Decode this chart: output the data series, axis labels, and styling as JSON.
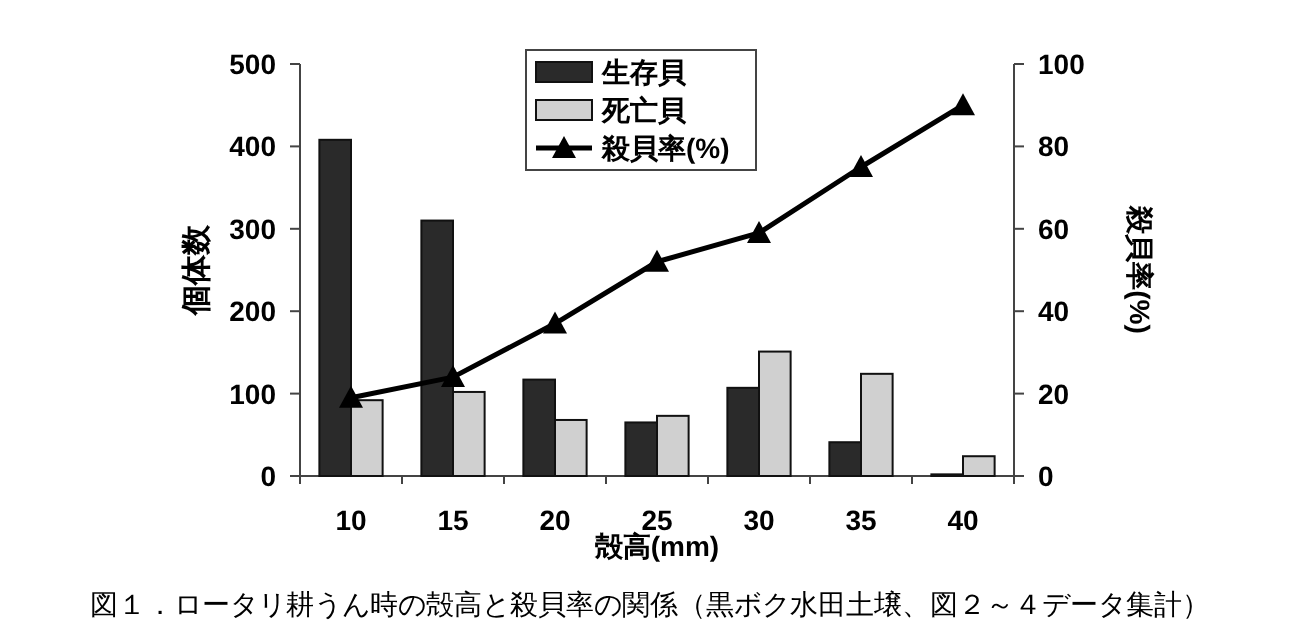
{
  "chart_data": {
    "type": "bar",
    "categories": [
      "10",
      "15",
      "20",
      "25",
      "30",
      "35",
      "40"
    ],
    "xlabel": "殻高(mm)",
    "ylabel": "個体数",
    "y2label": "殺貝率(%)",
    "ylim": [
      0,
      500
    ],
    "yticks": [
      0,
      100,
      200,
      300,
      400,
      500
    ],
    "y2lim": [
      0,
      100
    ],
    "y2ticks": [
      0,
      20,
      40,
      60,
      80,
      100
    ],
    "legend": "top",
    "grid": false,
    "series": [
      {
        "name": "生存貝",
        "color": "#2a2a2a",
        "values": [
          408,
          310,
          117,
          65,
          107,
          41,
          2
        ]
      },
      {
        "name": "死亡貝",
        "color": "#d0d0d0",
        "values": [
          92,
          102,
          68,
          73,
          151,
          124,
          24
        ]
      },
      {
        "name": "殺貝率(%)",
        "type": "line",
        "axis": "y2",
        "color": "#000000",
        "marker": "triangle",
        "line_style": "solid",
        "values": [
          19,
          24,
          37,
          52,
          59,
          75,
          90
        ]
      }
    ],
    "annotations": [
      "図１．ロータリ耕うん時の殻高と殺貝率の関係（黒ボク水田土壌、図２～４データ集計）"
    ]
  }
}
